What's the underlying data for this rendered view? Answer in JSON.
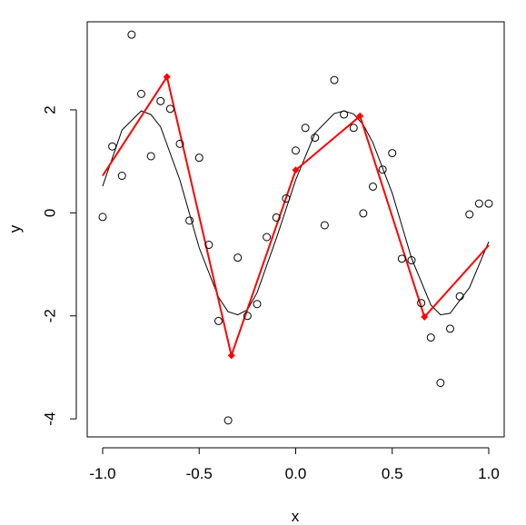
{
  "chart_data": {
    "type": "scatter",
    "title": "",
    "xlabel": "x",
    "ylabel": "y",
    "xlim": [
      -1.08,
      1.08
    ],
    "ylim": [
      -4.35,
      3.71
    ],
    "x_ticks": [
      -1.0,
      -0.5,
      0.0,
      0.5,
      1.0
    ],
    "x_tick_labels": [
      "-1.0",
      "-0.5",
      "0.0",
      "0.5",
      "1.0"
    ],
    "y_ticks": [
      -4,
      -2,
      0,
      2
    ],
    "y_tick_labels": [
      "-4",
      "-2",
      "0",
      "2"
    ],
    "grid": false,
    "legend": "none",
    "colors": {
      "points": "#000000",
      "smooth": "#000000",
      "fit": "#ff0000"
    },
    "series": [
      {
        "type": "scatter",
        "marker": "open-circle",
        "x": [
          -1.0,
          -0.95,
          -0.9,
          -0.85,
          -0.8,
          -0.75,
          -0.7,
          -0.65,
          -0.6,
          -0.55,
          -0.5,
          -0.45,
          -0.4,
          -0.35,
          -0.3,
          -0.25,
          -0.2,
          -0.15,
          -0.1,
          -0.05,
          0.0,
          0.05,
          0.1,
          0.15,
          0.2,
          0.25,
          0.3,
          0.35,
          0.4,
          0.45,
          0.5,
          0.55,
          0.6,
          0.65,
          0.7,
          0.75,
          0.8,
          0.85,
          0.9,
          0.95,
          1.0
        ],
        "y": [
          -0.08,
          1.29,
          0.72,
          3.46,
          2.31,
          1.1,
          2.17,
          2.02,
          1.34,
          -0.15,
          1.07,
          -0.62,
          -2.1,
          -4.03,
          -0.87,
          -2.0,
          -1.77,
          -0.47,
          -0.09,
          0.28,
          1.21,
          1.65,
          1.46,
          -0.24,
          2.58,
          1.91,
          1.65,
          -0.01,
          0.51,
          0.84,
          1.16,
          -0.89,
          -0.92,
          -1.75,
          -2.42,
          -3.3,
          -2.25,
          -1.62,
          -0.03,
          0.18,
          0.18
        ]
      },
      {
        "type": "line",
        "x": [
          -1.0,
          -0.9,
          -0.8,
          -0.75,
          -0.7,
          -0.6,
          -0.5,
          -0.4,
          -0.35,
          -0.3,
          -0.25,
          -0.2,
          -0.1,
          0.0,
          0.1,
          0.2,
          0.25,
          0.3,
          0.35,
          0.4,
          0.5,
          0.6,
          0.7,
          0.75,
          0.8,
          0.9,
          1.0
        ],
        "y": [
          0.52,
          1.61,
          1.98,
          1.91,
          1.67,
          0.64,
          -0.68,
          -1.64,
          -1.92,
          -1.98,
          -1.88,
          -1.55,
          -0.49,
          0.64,
          1.55,
          1.93,
          1.98,
          1.92,
          1.71,
          1.36,
          0.38,
          -0.88,
          -1.79,
          -1.98,
          -1.95,
          -1.45,
          -0.56
        ]
      },
      {
        "type": "line",
        "marker": "filled-diamond",
        "x": [
          -1.0,
          -0.667,
          -0.333,
          0.0,
          0.333,
          0.667,
          1.0
        ],
        "y": [
          0.72,
          2.64,
          -2.77,
          0.83,
          1.88,
          -2.02,
          -0.63
        ]
      }
    ]
  }
}
